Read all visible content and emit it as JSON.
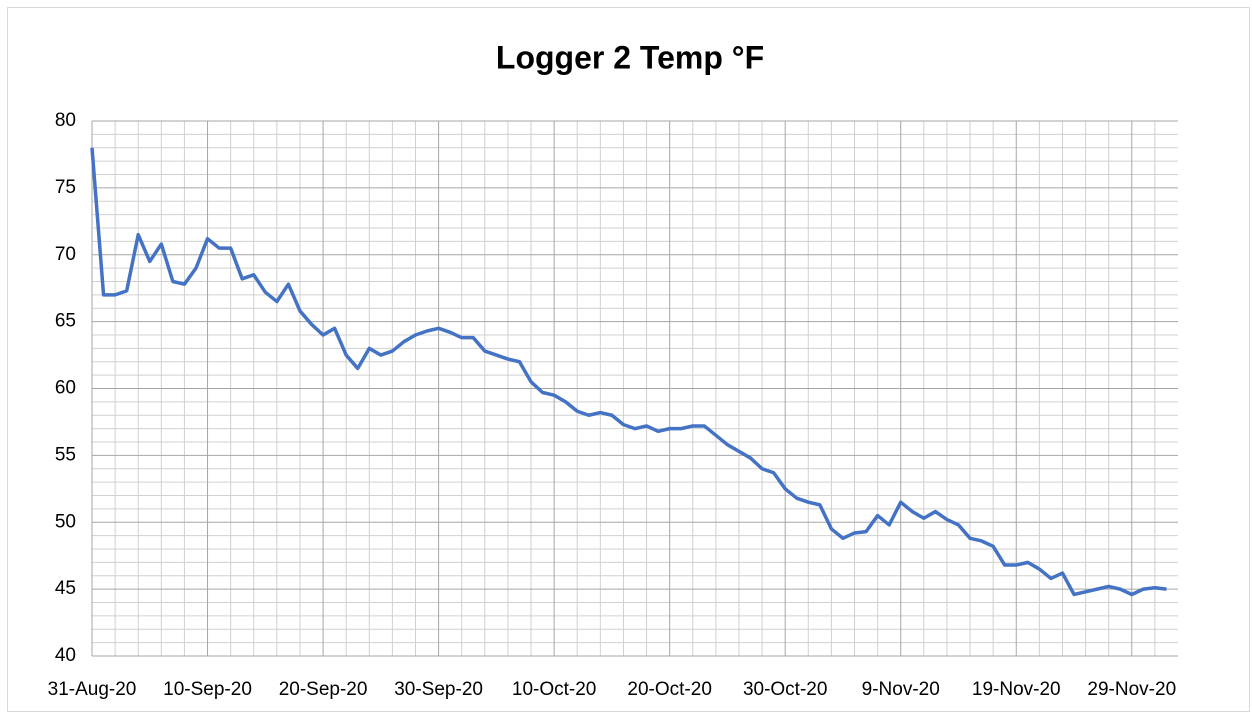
{
  "chart_data": {
    "type": "line",
    "title": "Logger 2 Temp °F",
    "x": [
      "2020-08-31",
      "2020-09-01",
      "2020-09-02",
      "2020-09-03",
      "2020-09-04",
      "2020-09-05",
      "2020-09-06",
      "2020-09-07",
      "2020-09-08",
      "2020-09-09",
      "2020-09-10",
      "2020-09-11",
      "2020-09-12",
      "2020-09-13",
      "2020-09-14",
      "2020-09-15",
      "2020-09-16",
      "2020-09-17",
      "2020-09-18",
      "2020-09-19",
      "2020-09-20",
      "2020-09-21",
      "2020-09-22",
      "2020-09-23",
      "2020-09-24",
      "2020-09-25",
      "2020-09-26",
      "2020-09-27",
      "2020-09-28",
      "2020-09-29",
      "2020-09-30",
      "2020-10-01",
      "2020-10-02",
      "2020-10-03",
      "2020-10-04",
      "2020-10-05",
      "2020-10-06",
      "2020-10-07",
      "2020-10-08",
      "2020-10-09",
      "2020-10-10",
      "2020-10-11",
      "2020-10-12",
      "2020-10-13",
      "2020-10-14",
      "2020-10-15",
      "2020-10-16",
      "2020-10-17",
      "2020-10-18",
      "2020-10-19",
      "2020-10-20",
      "2020-10-21",
      "2020-10-22",
      "2020-10-23",
      "2020-10-24",
      "2020-10-25",
      "2020-10-26",
      "2020-10-27",
      "2020-10-28",
      "2020-10-29",
      "2020-10-30",
      "2020-10-31",
      "2020-11-01",
      "2020-11-02",
      "2020-11-03",
      "2020-11-04",
      "2020-11-05",
      "2020-11-06",
      "2020-11-07",
      "2020-11-08",
      "2020-11-09",
      "2020-11-10",
      "2020-11-11",
      "2020-11-12",
      "2020-11-13",
      "2020-11-14",
      "2020-11-15",
      "2020-11-16",
      "2020-11-17",
      "2020-11-18",
      "2020-11-19",
      "2020-11-20",
      "2020-11-21",
      "2020-11-22",
      "2020-11-23",
      "2020-11-24",
      "2020-11-25",
      "2020-11-26",
      "2020-11-27",
      "2020-11-28",
      "2020-11-29",
      "2020-11-30",
      "2020-12-01",
      "2020-12-02"
    ],
    "series": [
      {
        "name": "Logger 2",
        "color": "#4472c4",
        "values": [
          78,
          67,
          67,
          67.3,
          71.5,
          69.5,
          70.8,
          68,
          67.8,
          69,
          71.2,
          70.5,
          70.5,
          68.2,
          68.5,
          67.2,
          66.5,
          67.8,
          65.8,
          64.8,
          64,
          64.5,
          62.5,
          61.5,
          63,
          62.5,
          62.8,
          63.5,
          64,
          64.3,
          64.5,
          64.2,
          63.8,
          63.8,
          62.8,
          62.5,
          62.2,
          62,
          60.5,
          59.7,
          59.5,
          59,
          58.3,
          58,
          58.2,
          58,
          57.3,
          57,
          57.2,
          56.8,
          57,
          57,
          57.2,
          57.2,
          56.5,
          55.8,
          55.3,
          54.8,
          54,
          53.7,
          52.5,
          51.8,
          51.5,
          51.3,
          49.5,
          48.8,
          49.2,
          49.3,
          50.5,
          49.8,
          51.5,
          50.8,
          50.3,
          50.8,
          50.2,
          49.8,
          48.8,
          48.6,
          48.2,
          46.8,
          46.8,
          47,
          46.5,
          45.8,
          46.2,
          44.6,
          44.8,
          45,
          45.2,
          45,
          44.6,
          45,
          45.1,
          45
        ]
      }
    ],
    "xlim": [
      "2020-08-31",
      "2020-12-03"
    ],
    "xticks": [
      {
        "value": "2020-08-31",
        "label": "31-Aug-20"
      },
      {
        "value": "2020-09-10",
        "label": "10-Sep-20"
      },
      {
        "value": "2020-09-20",
        "label": "20-Sep-20"
      },
      {
        "value": "2020-09-30",
        "label": "30-Sep-20"
      },
      {
        "value": "2020-10-10",
        "label": "10-Oct-20"
      },
      {
        "value": "2020-10-20",
        "label": "20-Oct-20"
      },
      {
        "value": "2020-10-30",
        "label": "30-Oct-20"
      },
      {
        "value": "2020-11-09",
        "label": "9-Nov-20"
      },
      {
        "value": "2020-11-19",
        "label": "19-Nov-20"
      },
      {
        "value": "2020-11-29",
        "label": "29-Nov-20"
      }
    ],
    "ylim": [
      40,
      80
    ],
    "yticks": [
      40,
      45,
      50,
      55,
      60,
      65,
      70,
      75,
      80
    ],
    "grid": true,
    "minor_grid": true
  }
}
